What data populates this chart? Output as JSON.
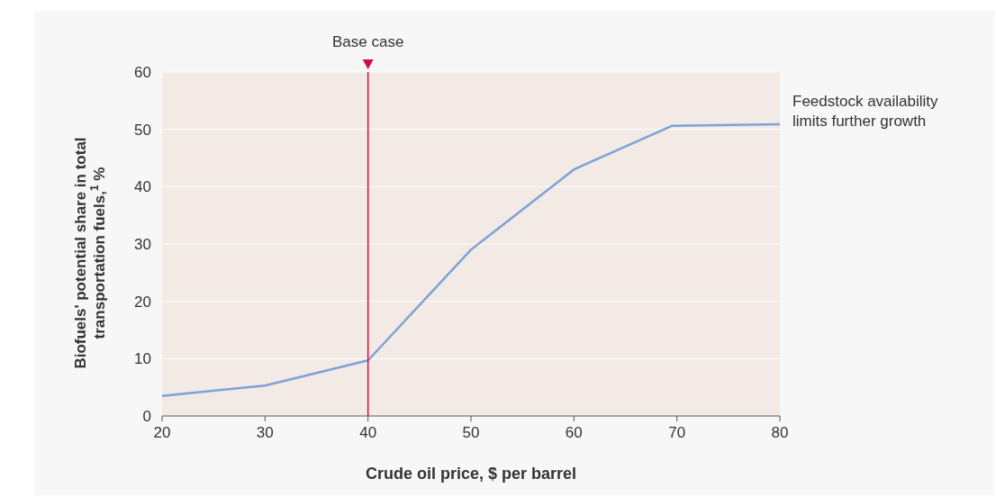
{
  "chart_data": {
    "type": "line",
    "xlabel": "Crude oil price, $ per barrel",
    "ylabel": "Biofuels' potential share in total transportation fuels,$^{1}$ %",
    "x": [
      20,
      30,
      40,
      50,
      60,
      69.5,
      80
    ],
    "series": [
      {
        "color": "#7ba3d8",
        "values": [
          3.5,
          5.3,
          9.7,
          29,
          43,
          50.6,
          50.9
        ]
      }
    ],
    "xlim": [
      20,
      80
    ],
    "xticks": [
      20,
      30,
      40,
      50,
      60,
      70,
      80
    ],
    "ylim": [
      0,
      60
    ],
    "yticks": [
      0,
      10,
      20,
      30,
      40,
      50,
      60
    ],
    "grid": "y",
    "line_style": "solid",
    "marker": "none",
    "ref_lines": [
      {
        "axis": "x",
        "value": 40,
        "label": "Base case",
        "color": "#d0103a"
      }
    ],
    "annotations": [
      {
        "text": "Feedstock availability limits further growth",
        "x": 80,
        "y": 50.9
      }
    ]
  }
}
